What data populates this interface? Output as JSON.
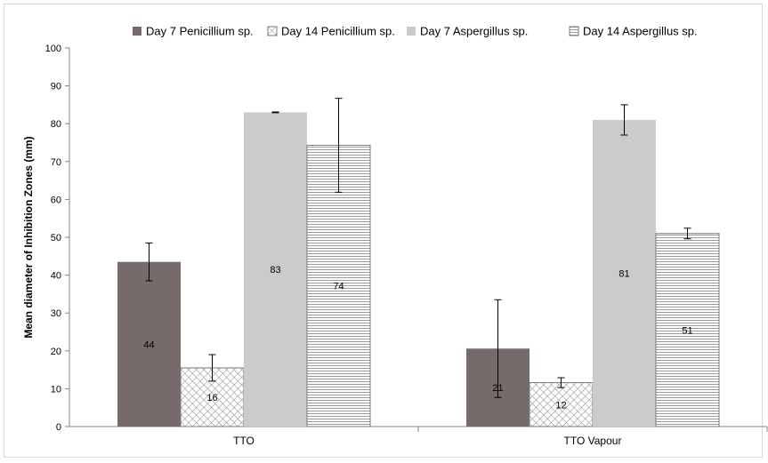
{
  "chart_data": {
    "type": "bar",
    "title": "",
    "xlabel": "",
    "ylabel": "Mean diameter of Inhibition Zones (mm)",
    "ylim": [
      0,
      100
    ],
    "yticks": [
      0,
      10,
      20,
      30,
      40,
      50,
      60,
      70,
      80,
      90,
      100
    ],
    "grid": false,
    "legend_position": "top",
    "categories": [
      "TTO",
      "TTO Vapour"
    ],
    "series": [
      {
        "name": "Day 7 Penicillium sp.",
        "values": [
          43.5,
          20.6
        ],
        "error": [
          5.0,
          12.9
        ],
        "data_labels": [
          "44",
          "21"
        ],
        "color": "#766a6b",
        "pattern": "solid"
      },
      {
        "name": "Day 14 Penicillium sp.",
        "values": [
          15.5,
          11.6
        ],
        "error": [
          3.5,
          1.3
        ],
        "data_labels": [
          "16",
          "12"
        ],
        "color": "#9a9a9a",
        "pattern": "crosshatch"
      },
      {
        "name": "Day 7 Aspergillus sp.",
        "values": [
          83.0,
          81.0
        ],
        "error": [
          0.1,
          4.0
        ],
        "data_labels": [
          "83",
          "81"
        ],
        "color": "#cbcbcb",
        "pattern": "solid"
      },
      {
        "name": "Day 14 Aspergillus sp.",
        "values": [
          74.3,
          51.0
        ],
        "error": [
          12.4,
          1.4
        ],
        "data_labels": [
          "74",
          "51"
        ],
        "color": "#8f8f8f",
        "pattern": "horizontal-lines"
      }
    ]
  }
}
